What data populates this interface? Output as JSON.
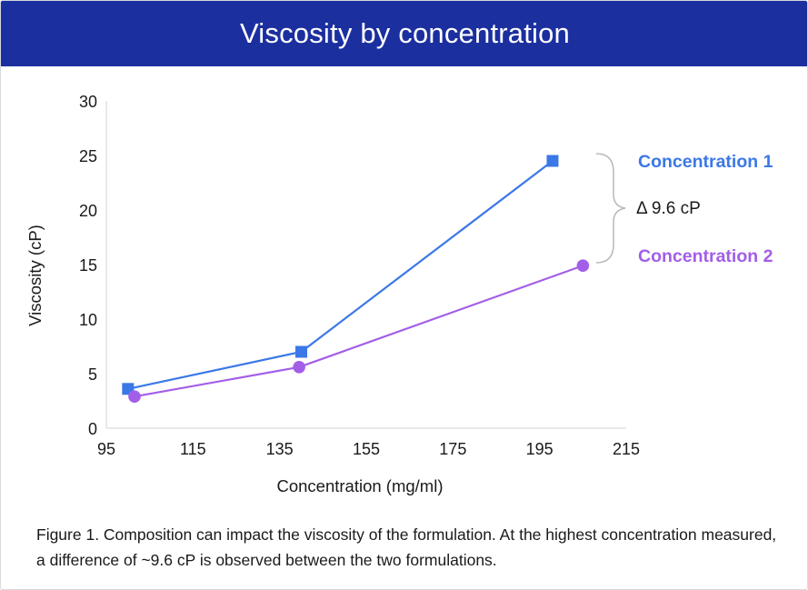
{
  "header": {
    "title": "Viscosity by concentration"
  },
  "chart_data": {
    "type": "line",
    "xlabel": "Concentration (mg/ml)",
    "ylabel": "Viscosity (cP)",
    "xlim": [
      95,
      215
    ],
    "ylim": [
      0,
      30
    ],
    "xticks": [
      95,
      115,
      135,
      155,
      175,
      195,
      215
    ],
    "yticks": [
      0,
      5,
      10,
      15,
      20,
      25,
      30
    ],
    "grid": false,
    "legend": "right, direct labels",
    "series": [
      {
        "name": "Concentration 1",
        "color": "#3b78e7",
        "marker": "square",
        "x": [
          100,
          140,
          198
        ],
        "y": [
          3.6,
          7.0,
          24.5
        ]
      },
      {
        "name": "Concentration 2",
        "color": "#a35ee8",
        "marker": "circle",
        "x": [
          101.5,
          139.5,
          205
        ],
        "y": [
          2.9,
          5.6,
          14.9
        ]
      }
    ],
    "annotation": {
      "text": "Δ 9.6 cP"
    }
  },
  "caption": "Figure 1. Composition can impact the viscosity of the formulation. At the highest concentration measured, a difference of ~9.6 cP is observed between the two formulations."
}
